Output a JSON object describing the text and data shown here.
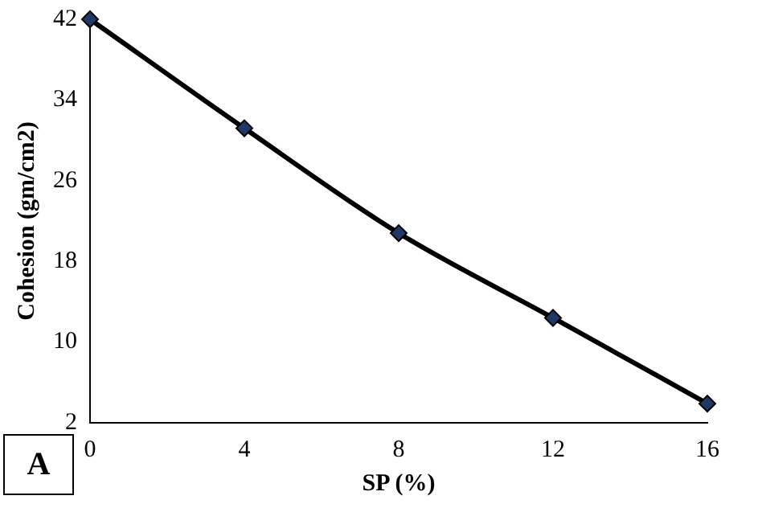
{
  "chart_data": {
    "type": "line",
    "xlabel": "SP (%)",
    "ylabel": "Cohesion (gm/cm2)",
    "x": [
      0,
      4,
      8,
      12,
      16
    ],
    "series": [
      {
        "color": "#000000",
        "values": [
          42,
          31.2,
          20.8,
          12.4,
          3.9
        ]
      }
    ],
    "xlim": [
      0,
      16
    ],
    "xticks": [
      0,
      4,
      8,
      12,
      16
    ],
    "ylim": [
      2,
      42
    ],
    "yticks": [
      2,
      10,
      18,
      26,
      34,
      42
    ],
    "marker": "diamond",
    "grid": false,
    "legend": false,
    "annotations": [
      "A"
    ]
  }
}
